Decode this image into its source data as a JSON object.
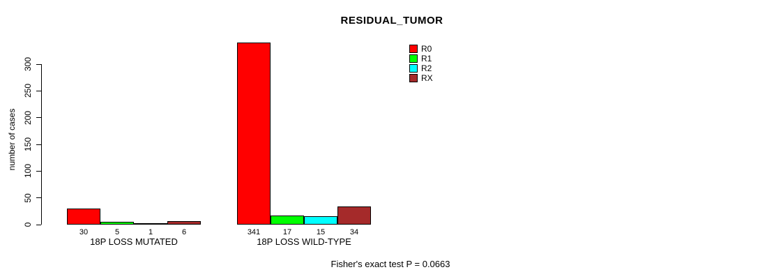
{
  "chart_data": {
    "type": "bar",
    "title": "RESIDUAL_TUMOR",
    "xlabel": "",
    "ylabel": "number of cases",
    "ylim": [
      0,
      345
    ],
    "yticks": [
      0,
      50,
      100,
      150,
      200,
      250,
      300
    ],
    "grid": false,
    "legend_position": "top-right",
    "categories": [
      "18P LOSS MUTATED",
      "18P LOSS WILD-TYPE"
    ],
    "series": [
      {
        "name": "R0",
        "color": "#FF0000",
        "values": [
          30,
          341
        ]
      },
      {
        "name": "R1",
        "color": "#00FF00",
        "values": [
          5,
          17
        ]
      },
      {
        "name": "R2",
        "color": "#00FFFF",
        "values": [
          1,
          15
        ]
      },
      {
        "name": "RX",
        "color": "#A52A2A",
        "values": [
          6,
          34
        ]
      }
    ],
    "bar_value_labels": [
      [
        "30",
        "5",
        "1",
        "6"
      ],
      [
        "341",
        "17",
        "15",
        "34"
      ]
    ],
    "annotation": "Fisher's exact test P = 0.0663",
    "axis_color": "#000000",
    "background_color": "#FFFFFF"
  }
}
